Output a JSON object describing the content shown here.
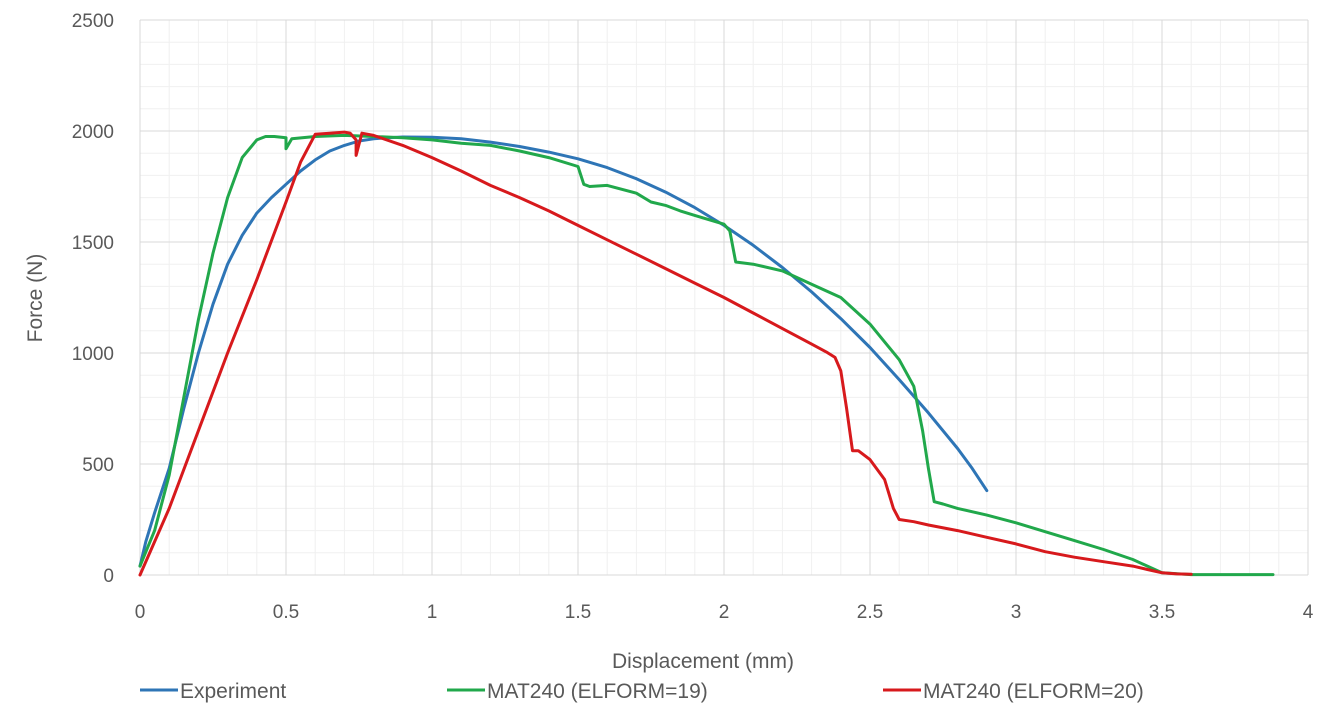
{
  "chart_data": {
    "type": "line",
    "title": "",
    "xlabel": "Displacement  (mm)",
    "ylabel": "Force (N)",
    "xlim": [
      0,
      4
    ],
    "ylim": [
      0,
      2500
    ],
    "x_ticks": [
      0,
      0.5,
      1,
      1.5,
      2,
      2.5,
      3,
      3.5,
      4
    ],
    "x_tick_labels": [
      "0",
      "0.5",
      "1",
      "1.5",
      "2",
      "2.5",
      "3",
      "3.5",
      "4"
    ],
    "y_ticks": [
      0,
      500,
      1000,
      1500,
      2000,
      2500
    ],
    "y_tick_labels": [
      "0",
      "500",
      "1000",
      "1500",
      "2000",
      "2500"
    ],
    "grid": "major and minor",
    "legend_position": "bottom",
    "series": [
      {
        "name": "Experiment",
        "color": "#2E75B6",
        "x": [
          0,
          0.02,
          0.05,
          0.1,
          0.15,
          0.2,
          0.25,
          0.3,
          0.35,
          0.4,
          0.45,
          0.5,
          0.55,
          0.6,
          0.65,
          0.7,
          0.75,
          0.8,
          0.85,
          0.9,
          1.0,
          1.1,
          1.2,
          1.3,
          1.4,
          1.5,
          1.6,
          1.7,
          1.8,
          1.9,
          2.0,
          2.1,
          2.2,
          2.3,
          2.4,
          2.5,
          2.6,
          2.7,
          2.8,
          2.85,
          2.9
        ],
        "y": [
          40,
          150,
          280,
          480,
          750,
          1000,
          1220,
          1400,
          1530,
          1630,
          1700,
          1760,
          1820,
          1870,
          1910,
          1935,
          1955,
          1965,
          1970,
          1973,
          1972,
          1965,
          1950,
          1930,
          1905,
          1875,
          1835,
          1785,
          1725,
          1655,
          1575,
          1485,
          1385,
          1275,
          1155,
          1025,
          880,
          730,
          570,
          480,
          380
        ]
      },
      {
        "name": "MAT240 (ELFORM=19)",
        "color": "#21A84B",
        "x": [
          0,
          0.05,
          0.1,
          0.15,
          0.2,
          0.25,
          0.3,
          0.35,
          0.4,
          0.43,
          0.46,
          0.5,
          0.5,
          0.52,
          0.6,
          0.7,
          0.8,
          0.9,
          1.0,
          1.1,
          1.2,
          1.3,
          1.4,
          1.5,
          1.52,
          1.54,
          1.6,
          1.7,
          1.75,
          1.8,
          1.85,
          1.9,
          2.0,
          2.02,
          2.04,
          2.1,
          2.2,
          2.3,
          2.4,
          2.5,
          2.6,
          2.65,
          2.68,
          2.7,
          2.72,
          2.75,
          2.8,
          2.9,
          3.0,
          3.1,
          3.2,
          3.3,
          3.4,
          3.5,
          3.6,
          3.7,
          3.8,
          3.88
        ],
        "y": [
          40,
          200,
          450,
          800,
          1150,
          1450,
          1700,
          1880,
          1960,
          1975,
          1975,
          1970,
          1920,
          1965,
          1975,
          1980,
          1975,
          1970,
          1960,
          1945,
          1935,
          1910,
          1880,
          1840,
          1760,
          1750,
          1755,
          1720,
          1680,
          1665,
          1640,
          1620,
          1580,
          1550,
          1410,
          1400,
          1370,
          1310,
          1250,
          1130,
          970,
          850,
          650,
          480,
          330,
          320,
          300,
          270,
          235,
          195,
          155,
          115,
          70,
          10,
          2,
          2,
          2,
          2
        ]
      },
      {
        "name": "MAT240 (ELFORM=20)",
        "color": "#D7191C",
        "x": [
          0,
          0.1,
          0.2,
          0.3,
          0.4,
          0.5,
          0.55,
          0.6,
          0.65,
          0.7,
          0.72,
          0.74,
          0.74,
          0.76,
          0.8,
          0.9,
          1.0,
          1.1,
          1.2,
          1.3,
          1.4,
          1.5,
          1.6,
          1.7,
          1.8,
          1.9,
          2.0,
          2.1,
          2.2,
          2.3,
          2.35,
          2.38,
          2.4,
          2.42,
          2.44,
          2.46,
          2.5,
          2.55,
          2.58,
          2.6,
          2.65,
          2.7,
          2.8,
          2.9,
          3.0,
          3.1,
          3.2,
          3.3,
          3.4,
          3.45,
          3.5,
          3.55,
          3.6
        ],
        "y": [
          0,
          300,
          650,
          1000,
          1330,
          1680,
          1860,
          1985,
          1990,
          1995,
          1990,
          1960,
          1890,
          1990,
          1980,
          1935,
          1880,
          1820,
          1755,
          1700,
          1640,
          1575,
          1510,
          1445,
          1380,
          1315,
          1250,
          1180,
          1110,
          1040,
          1005,
          980,
          920,
          750,
          560,
          560,
          520,
          430,
          300,
          250,
          240,
          225,
          200,
          170,
          140,
          105,
          80,
          60,
          40,
          25,
          10,
          5,
          3
        ]
      }
    ]
  }
}
